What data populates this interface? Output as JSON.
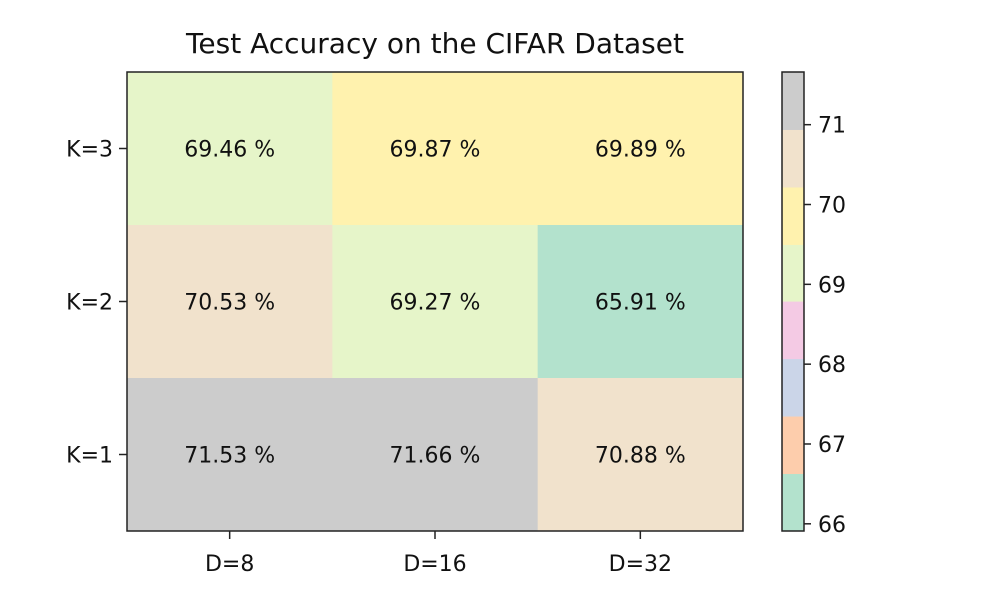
{
  "chart_data": {
    "type": "heatmap",
    "title": "Test Accuracy on the CIFAR Dataset",
    "x_categories": [
      "D=8",
      "D=16",
      "D=32"
    ],
    "y_categories": [
      "K=3",
      "K=2",
      "K=1"
    ],
    "values": [
      [
        69.46,
        69.87,
        69.89
      ],
      [
        70.53,
        69.27,
        65.91
      ],
      [
        71.53,
        71.66,
        70.88
      ]
    ],
    "cell_labels": [
      [
        "69.46 %",
        "69.87 %",
        "69.89 %"
      ],
      [
        "70.53 %",
        "69.27 %",
        "65.91 %"
      ],
      [
        "71.53 %",
        "71.66 %",
        "70.88 %"
      ]
    ],
    "colorbar": {
      "ticks": [
        "66",
        "67",
        "68",
        "69",
        "70",
        "71"
      ],
      "tick_values": [
        66,
        67,
        68,
        69,
        70,
        71
      ],
      "range": [
        65.91,
        71.66
      ],
      "bands": [
        {
          "from": 65.91,
          "to": 66.63,
          "color": "#b3e2cd"
        },
        {
          "from": 66.63,
          "to": 67.35,
          "color": "#fdcdac"
        },
        {
          "from": 67.35,
          "to": 68.07,
          "color": "#cbd5e8"
        },
        {
          "from": 68.07,
          "to": 68.79,
          "color": "#f4cae4"
        },
        {
          "from": 68.79,
          "to": 69.5,
          "color": "#e6f5c9"
        },
        {
          "from": 69.5,
          "to": 70.22,
          "color": "#fff2ae"
        },
        {
          "from": 70.22,
          "to": 70.94,
          "color": "#f1e2cc"
        },
        {
          "from": 70.94,
          "to": 71.66,
          "color": "#cccccc"
        }
      ]
    },
    "colormap": "Pastel2"
  }
}
